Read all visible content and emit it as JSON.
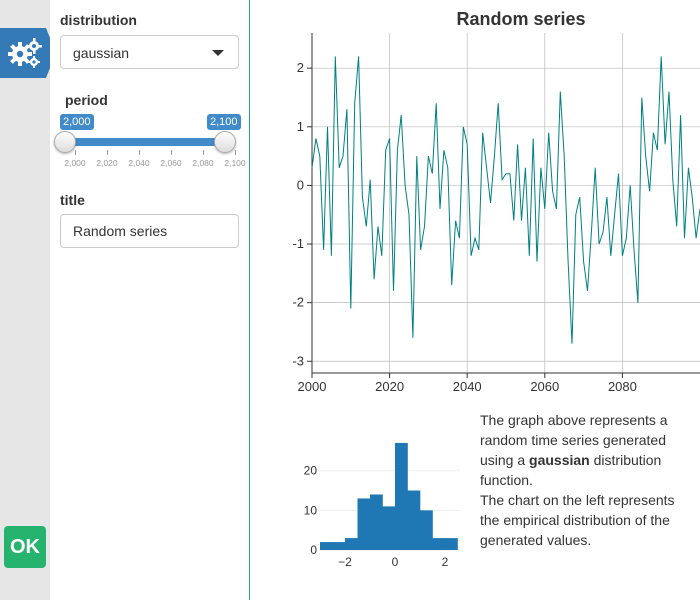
{
  "icons": {
    "settings": "gears-icon"
  },
  "colors": {
    "accent": "#337ab7",
    "line": "#008080",
    "bars": "#1f77b4",
    "ok": "#26b36d"
  },
  "controls": {
    "distribution": {
      "label": "distribution",
      "value": "gaussian"
    },
    "period": {
      "label": "period",
      "from": 2000,
      "to": 2100,
      "from_label": "2,000",
      "to_label": "2,100",
      "ticks": [
        "2,000",
        "2,020",
        "2,040",
        "2,060",
        "2,080",
        "2,100"
      ]
    },
    "title": {
      "label": "title",
      "value": "Random series"
    }
  },
  "ok_label": "OK",
  "description": {
    "part1": "The graph above represents a random time series generated using a ",
    "dist": "gaussian",
    "part2": " distribution function.",
    "part3": "The chart on the left represents the empirical distribution of the generated values."
  },
  "chart_data": [
    {
      "type": "line",
      "title": "Random series",
      "xlim": [
        2000,
        2100
      ],
      "ylim": [
        -3.2,
        2.6
      ],
      "x_ticks": [
        2000,
        2020,
        2040,
        2060,
        2080
      ],
      "y_ticks": [
        -3,
        -2,
        -1,
        0,
        1,
        2
      ],
      "grid": true,
      "x_start": 2000,
      "values": [
        0.3,
        0.8,
        0.5,
        -1.1,
        1.0,
        -1.2,
        2.2,
        0.3,
        0.5,
        1.3,
        -2.1,
        1.4,
        2.2,
        -0.2,
        -0.7,
        0.1,
        -1.6,
        -0.7,
        -1.2,
        0.6,
        0.8,
        -1.8,
        0.6,
        1.2,
        0.0,
        -0.5,
        -2.6,
        0.5,
        -1.1,
        -0.7,
        0.5,
        0.2,
        1.4,
        -0.4,
        0.6,
        0.3,
        -1.7,
        -0.6,
        -0.9,
        1.0,
        0.7,
        -1.2,
        -0.9,
        -1.1,
        0.9,
        0.3,
        -0.3,
        0.5,
        1.4,
        0.1,
        0.2,
        0.2,
        -0.6,
        0.7,
        -0.6,
        0.3,
        -1.2,
        0.8,
        -1.3,
        0.3,
        -0.4,
        0.9,
        -0.1,
        -0.4,
        1.6,
        0.5,
        -1.3,
        -2.7,
        -0.5,
        -0.2,
        -1.3,
        -1.8,
        -0.8,
        0.3,
        -1.0,
        -0.8,
        -0.2,
        -1.2,
        -0.5,
        0.2,
        -1.2,
        -0.9,
        0.0,
        -1.1,
        -2.0,
        1.5,
        0.5,
        -0.1,
        0.9,
        0.6,
        2.2,
        0.7,
        1.6,
        0.1,
        -0.7,
        1.2,
        -0.9,
        0.3,
        -0.2,
        -0.9,
        -0.4
      ]
    },
    {
      "type": "bar",
      "subtype": "histogram",
      "xlim": [
        -3,
        2.6
      ],
      "ylim": [
        0,
        29
      ],
      "x_ticks": [
        -2,
        0,
        2
      ],
      "x_tick_labels": [
        "−2",
        "0",
        "2"
      ],
      "y_ticks": [
        0,
        10,
        20
      ],
      "bins": [
        {
          "x0": -3.0,
          "x1": -2.5,
          "count": 2
        },
        {
          "x0": -2.5,
          "x1": -2.0,
          "count": 2
        },
        {
          "x0": -2.0,
          "x1": -1.5,
          "count": 3
        },
        {
          "x0": -1.5,
          "x1": -1.0,
          "count": 13
        },
        {
          "x0": -1.0,
          "x1": -0.5,
          "count": 14
        },
        {
          "x0": -0.5,
          "x1": 0.0,
          "count": 11
        },
        {
          "x0": 0.0,
          "x1": 0.5,
          "count": 27
        },
        {
          "x0": 0.5,
          "x1": 1.0,
          "count": 15
        },
        {
          "x0": 1.0,
          "x1": 1.5,
          "count": 10
        },
        {
          "x0": 1.5,
          "x1": 2.0,
          "count": 3
        },
        {
          "x0": 2.0,
          "x1": 2.5,
          "count": 3
        }
      ]
    }
  ]
}
